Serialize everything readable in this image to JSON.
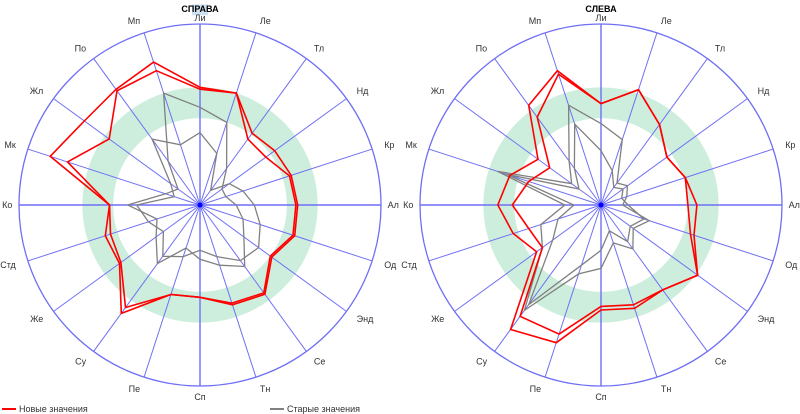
{
  "colors": {
    "axis": "#6f6ff5",
    "band": "#cdeedd",
    "new": "#ff0000",
    "old": "#808080",
    "highlight": "#cfe3f2"
  },
  "chart_data": [
    {
      "type": "radar",
      "title": "СПРАВА",
      "axes": [
        "Ли",
        "Ле",
        "Тл",
        "Нд",
        "Кр",
        "Ал",
        "Од",
        "Энд",
        "Се",
        "Тн",
        "Сп",
        "Пе",
        "Су",
        "Же",
        "Стд",
        "Ко",
        "Мк",
        "Жл",
        "По",
        "Мп"
      ],
      "highlighted_axis": "Ли",
      "range": [
        0,
        100
      ],
      "band": [
        48,
        65
      ],
      "series": [
        {
          "name": "Новые значения",
          "values": [
            65,
            65,
            49,
            51,
            53,
            54,
            55,
            49,
            61,
            58,
            51,
            52,
            74,
            55,
            55,
            50,
            87,
            79,
            79,
            83
          ]
        },
        {
          "name": "Новые значения",
          "values": [
            64,
            65,
            45,
            45,
            52,
            53,
            54,
            48,
            60,
            57,
            51,
            52,
            70,
            54,
            52,
            50,
            77,
            62,
            78,
            78
          ]
        },
        {
          "name": "Старые значения",
          "values": [
            54,
            48,
            25,
            15,
            15,
            20,
            25,
            30,
            42,
            35,
            30,
            25,
            40,
            30,
            25,
            40,
            20,
            15,
            30,
            65
          ]
        },
        {
          "name": "Старые значения",
          "values": [
            40,
            30,
            10,
            20,
            25,
            30,
            35,
            40,
            38,
            30,
            25,
            30,
            35,
            25,
            30,
            35,
            15,
            20,
            45,
            35
          ]
        }
      ]
    },
    {
      "type": "radar",
      "title": "СЛЕВА",
      "axes": [
        "Ли",
        "Ле",
        "Тл",
        "Нд",
        "Кр",
        "Ал",
        "Од",
        "Энд",
        "Се",
        "Тн",
        "Сп",
        "Пе",
        "Су",
        "Же",
        "Стд",
        "Ко",
        "Мк",
        "Жл",
        "По",
        "Мп"
      ],
      "highlighted_axis": "",
      "range": [
        0,
        100
      ],
      "band": [
        48,
        65
      ],
      "series": [
        {
          "name": "Новые значения",
          "values": [
            56,
            67,
            55,
            45,
            49,
            53,
            54,
            66,
            58,
            60,
            58,
            80,
            85,
            44,
            51,
            57,
            53,
            43,
            68,
            78
          ]
        },
        {
          "name": "Новые значения",
          "values": [
            56,
            67,
            55,
            45,
            49,
            48,
            52,
            66,
            58,
            58,
            56,
            75,
            76,
            40,
            42,
            49,
            42,
            35,
            60,
            76
          ]
        },
        {
          "name": "Старые значения",
          "values": [
            45,
            38,
            15,
            18,
            15,
            12,
            28,
            22,
            30,
            22,
            35,
            40,
            72,
            40,
            35,
            20,
            60,
            20,
            30,
            58
          ]
        },
        {
          "name": "Старые значения",
          "values": [
            30,
            20,
            12,
            15,
            12,
            15,
            25,
            20,
            25,
            15,
            25,
            35,
            68,
            33,
            25,
            15,
            55,
            15,
            25,
            47
          ]
        }
      ]
    }
  ],
  "legend": {
    "new_label": "Новые значения",
    "old_label": "Старые значения"
  }
}
